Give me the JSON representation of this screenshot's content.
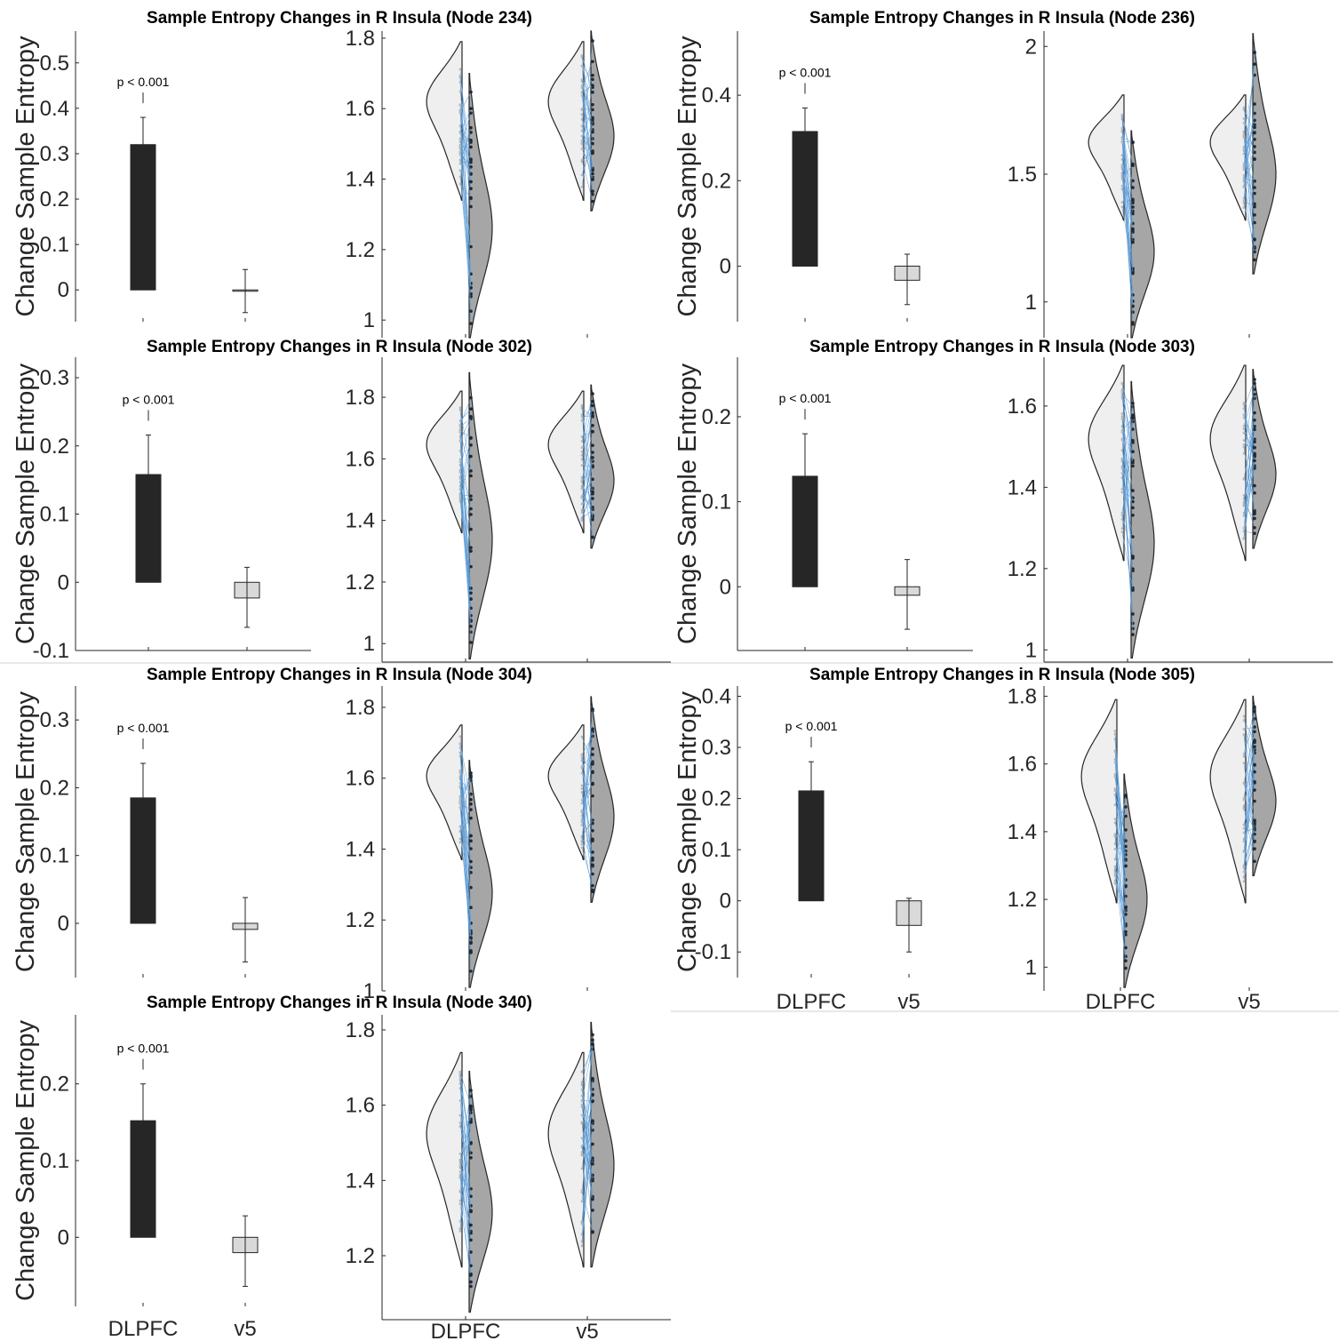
{
  "chart_data": [
    {
      "type": "bar",
      "title": "Sample Entropy Changes in R Insula (Node 234)",
      "ylabel": "Change Sample Entropy",
      "categories": [
        "DLPFC",
        "v5"
      ],
      "show_category_labels": false,
      "values": [
        0.32,
        0.0
      ],
      "error_low": [
        0.265,
        -0.05
      ],
      "error_high": [
        0.38,
        0.045
      ],
      "annotation": "p < 0.001",
      "ylim": [
        -0.07,
        0.57
      ],
      "yticks": [
        0,
        0.1,
        0.2,
        0.3,
        0.4,
        0.5
      ],
      "ytick_labels": [
        "0",
        "0.1",
        "0.2",
        "0.3",
        "0.4",
        "0.5"
      ],
      "violin": {
        "type": "violin",
        "ylim": [
          0.95,
          1.82
        ],
        "yticks": [
          1,
          1.2,
          1.4,
          1.6,
          1.8
        ],
        "ytick_labels": [
          "1",
          "1.2",
          "1.4",
          "1.6",
          "1.8"
        ],
        "show_category_labels": false,
        "groups": [
          {
            "pre_range": [
              1.34,
              1.79
            ],
            "post_range": [
              0.95,
              1.7
            ]
          },
          {
            "pre_range": [
              1.34,
              1.79
            ],
            "post_range": [
              1.31,
              1.82
            ]
          }
        ]
      }
    },
    {
      "type": "bar",
      "title": "Sample Entropy Changes in R Insula (Node 236)",
      "ylabel": "Change Sample Entropy",
      "categories": [
        "DLPFC",
        "v5"
      ],
      "show_category_labels": false,
      "values": [
        0.315,
        -0.033
      ],
      "error_low": [
        0.26,
        -0.09
      ],
      "error_high": [
        0.37,
        0.028
      ],
      "annotation": "p < 0.001",
      "ylim": [
        -0.13,
        0.55
      ],
      "yticks": [
        0,
        0.2,
        0.4
      ],
      "ytick_labels": [
        "0",
        "0.2",
        "0.4"
      ],
      "violin": {
        "type": "violin",
        "ylim": [
          0.86,
          2.06
        ],
        "yticks": [
          1,
          1.5,
          2
        ],
        "ytick_labels": [
          "1",
          "1.5",
          "2"
        ],
        "show_category_labels": false,
        "groups": [
          {
            "pre_range": [
              1.32,
              1.81
            ],
            "post_range": [
              0.86,
              1.67
            ]
          },
          {
            "pre_range": [
              1.32,
              1.81
            ],
            "post_range": [
              1.11,
              2.05
            ]
          }
        ]
      }
    },
    {
      "type": "bar",
      "title": "Sample Entropy Changes in R Insula (Node 302)",
      "ylabel": "Change Sample Entropy",
      "categories": [
        "DLPFC",
        "v5"
      ],
      "show_category_labels": false,
      "values": [
        0.158,
        -0.023
      ],
      "error_low": [
        0.102,
        -0.066
      ],
      "error_high": [
        0.216,
        0.022
      ],
      "annotation": "p < 0.001",
      "ylim": [
        -0.1,
        0.33
      ],
      "yticks": [
        -0.1,
        0,
        0.1,
        0.2,
        0.3
      ],
      "ytick_labels": [
        "-0.1",
        "0",
        "0.1",
        "0.2",
        "0.3"
      ],
      "violin": {
        "type": "violin",
        "ylim": [
          0.94,
          1.93
        ],
        "yticks": [
          1,
          1.2,
          1.4,
          1.6,
          1.8
        ],
        "ytick_labels": [
          "1",
          "1.2",
          "1.4",
          "1.6",
          "1.8"
        ],
        "show_category_labels": false,
        "groups": [
          {
            "pre_range": [
              1.36,
              1.82
            ],
            "post_range": [
              0.95,
              1.88
            ]
          },
          {
            "pre_range": [
              1.36,
              1.82
            ],
            "post_range": [
              1.31,
              1.84
            ]
          }
        ]
      }
    },
    {
      "type": "bar",
      "title": "Sample Entropy Changes in R Insula (Node 303)",
      "ylabel": "Change Sample Entropy",
      "categories": [
        "DLPFC",
        "v5"
      ],
      "show_category_labels": false,
      "values": [
        0.13,
        -0.01
      ],
      "error_low": [
        0.078,
        -0.05
      ],
      "error_high": [
        0.18,
        0.032
      ],
      "annotation": "p < 0.001",
      "ylim": [
        -0.075,
        0.27
      ],
      "yticks": [
        0,
        0.1,
        0.2
      ],
      "ytick_labels": [
        "0",
        "0.1",
        "0.2"
      ],
      "violin": {
        "type": "violin",
        "ylim": [
          0.97,
          1.72
        ],
        "yticks": [
          1,
          1.2,
          1.4,
          1.6
        ],
        "ytick_labels": [
          "1",
          "1.2",
          "1.4",
          "1.6"
        ],
        "show_category_labels": false,
        "groups": [
          {
            "pre_range": [
              1.22,
              1.7
            ],
            "post_range": [
              0.98,
              1.66
            ]
          },
          {
            "pre_range": [
              1.22,
              1.7
            ],
            "post_range": [
              1.25,
              1.69
            ]
          }
        ]
      }
    },
    {
      "type": "bar",
      "title": "Sample Entropy Changes in R Insula (Node 304)",
      "ylabel": "Change Sample Entropy",
      "categories": [
        "DLPFC",
        "v5"
      ],
      "show_category_labels": false,
      "values": [
        0.185,
        -0.009
      ],
      "error_low": [
        0.135,
        -0.057
      ],
      "error_high": [
        0.236,
        0.038
      ],
      "annotation": "p < 0.001",
      "ylim": [
        -0.08,
        0.35
      ],
      "yticks": [
        0,
        0.1,
        0.2,
        0.3
      ],
      "ytick_labels": [
        "0",
        "0.1",
        "0.2",
        "0.3"
      ],
      "violin": {
        "type": "violin",
        "ylim": [
          1.0,
          1.86
        ],
        "yticks": [
          1,
          1.2,
          1.4,
          1.6,
          1.8
        ],
        "ytick_labels": [
          "1",
          "1.2",
          "1.4",
          "1.6",
          "1.8"
        ],
        "show_category_labels": false,
        "groups": [
          {
            "pre_range": [
              1.37,
              1.75
            ],
            "post_range": [
              1.01,
              1.65
            ]
          },
          {
            "pre_range": [
              1.37,
              1.75
            ],
            "post_range": [
              1.25,
              1.83
            ]
          }
        ]
      }
    },
    {
      "type": "bar",
      "title": "Sample Entropy Changes in R Insula (Node 305)",
      "ylabel": "Change Sample Entropy",
      "categories": [
        "DLPFC",
        "v5"
      ],
      "show_category_labels": true,
      "values": [
        0.215,
        -0.048
      ],
      "error_low": [
        0.162,
        -0.1
      ],
      "error_high": [
        0.272,
        0.005
      ],
      "annotation": "p < 0.001",
      "ylim": [
        -0.15,
        0.42
      ],
      "yticks": [
        -0.1,
        0,
        0.1,
        0.2,
        0.3,
        0.4
      ],
      "ytick_labels": [
        "-0.1",
        "0",
        "0.1",
        "0.2",
        "0.3",
        "0.4"
      ],
      "violin": {
        "type": "violin",
        "ylim": [
          0.93,
          1.83
        ],
        "yticks": [
          1,
          1.2,
          1.4,
          1.6,
          1.8
        ],
        "ytick_labels": [
          "1",
          "1.2",
          "1.4",
          "1.6",
          "1.8"
        ],
        "show_category_labels": true,
        "groups": [
          {
            "pre_range": [
              1.19,
              1.79
            ],
            "post_range": [
              0.94,
              1.57
            ]
          },
          {
            "pre_range": [
              1.19,
              1.79
            ],
            "post_range": [
              1.27,
              1.8
            ]
          }
        ]
      }
    },
    {
      "type": "bar",
      "title": "Sample Entropy Changes in R Insula (Node 340)",
      "ylabel": "Change Sample Entropy",
      "categories": [
        "DLPFC",
        "v5"
      ],
      "show_category_labels": true,
      "values": [
        0.152,
        -0.02
      ],
      "error_low": [
        0.105,
        -0.064
      ],
      "error_high": [
        0.2,
        0.028
      ],
      "annotation": "p < 0.001",
      "ylim": [
        -0.09,
        0.29
      ],
      "yticks": [
        0,
        0.1,
        0.2
      ],
      "ytick_labels": [
        "0",
        "0.1",
        "0.2"
      ],
      "violin": {
        "type": "violin",
        "ylim": [
          1.03,
          1.84
        ],
        "yticks": [
          1.2,
          1.4,
          1.6,
          1.8
        ],
        "ytick_labels": [
          "1.2",
          "1.4",
          "1.6",
          "1.8"
        ],
        "show_category_labels": true,
        "groups": [
          {
            "pre_range": [
              1.17,
              1.74
            ],
            "post_range": [
              1.05,
              1.69
            ]
          },
          {
            "pre_range": [
              1.17,
              1.74
            ],
            "post_range": [
              1.17,
              1.82
            ]
          }
        ]
      }
    }
  ]
}
